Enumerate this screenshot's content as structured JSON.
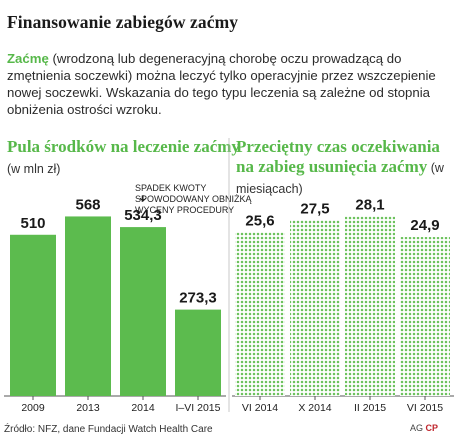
{
  "title": "Finansowanie zabiegów zaćmy",
  "intro": {
    "highlight": "Zaćmę",
    "text": " (wrodzoną lub degeneracyjną chorobę oczu prowadzącą do zmętnienia soczewki) można leczyć tylko operacyjnie przez wszczepienie nowej soczewki. Wskazania do tego typu leczenia są zależne od stopnia obniżenia ostrości wzroku."
  },
  "colors": {
    "accent": "#57b84a",
    "bar_fill": "#5cbb4e",
    "dot_fill": "#6cc25c"
  },
  "chart_data": [
    {
      "type": "bar",
      "title_main": "Pula środków na leczenie zaćmy",
      "title_unit": " (w mln zł)",
      "categories": [
        "2009",
        "2013",
        "2014",
        "I–VI 2015"
      ],
      "values": [
        510,
        568,
        534.3,
        273.3
      ],
      "value_labels": [
        "510",
        "568",
        "534,3",
        "273,3"
      ],
      "ylim": [
        0,
        620
      ],
      "annotation": "Spadek kwoty spowodowany obniżką wyceny procedury",
      "annotation_index": 2
    },
    {
      "type": "bar",
      "style": "dotted",
      "title_main": "Przeciętny czas oczekiwania na zabieg usunięcia zaćmy",
      "title_unit": " (w miesiącach)",
      "categories": [
        "VI 2014",
        "X 2014",
        "II 2015",
        "VI 2015"
      ],
      "values": [
        25.6,
        27.5,
        28.1,
        24.9
      ],
      "value_labels": [
        "25,6",
        "27,5",
        "28,1",
        "24,9"
      ],
      "ylim": [
        0,
        30.7
      ]
    }
  ],
  "source": "Źródło: NFZ, dane Fundacji Watch Health Care",
  "credit": "AG",
  "logo_text": "CP"
}
